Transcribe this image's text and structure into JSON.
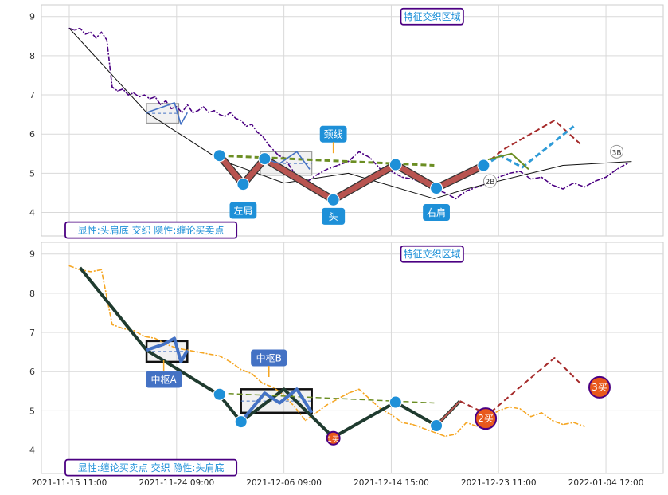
{
  "chart_data": [
    {
      "type": "line",
      "panel": "top",
      "ylim": [
        3.4,
        9.3
      ],
      "yticks": [
        "4",
        "5",
        "6",
        "7",
        "8",
        "9"
      ],
      "grid": true,
      "series": [
        {
          "kind": "price",
          "color": "#4b0082",
          "style": "dash-dot",
          "points": [
            [
              0,
              8.7
            ],
            [
              0.25,
              8.65
            ],
            [
              0.5,
              8.7
            ],
            [
              0.75,
              8.55
            ],
            [
              1,
              8.6
            ],
            [
              1.25,
              8.45
            ],
            [
              1.5,
              8.6
            ],
            [
              1.75,
              8.4
            ],
            [
              2,
              7.2
            ],
            [
              2.25,
              7.1
            ],
            [
              2.5,
              7.15
            ],
            [
              2.75,
              7.0
            ],
            [
              3,
              7.05
            ],
            [
              3.25,
              6.95
            ],
            [
              3.5,
              7.0
            ],
            [
              3.75,
              6.9
            ],
            [
              4,
              6.95
            ],
            [
              4.25,
              6.75
            ],
            [
              4.5,
              6.85
            ],
            [
              4.75,
              6.65
            ],
            [
              5,
              6.7
            ],
            [
              5.25,
              6.55
            ],
            [
              5.5,
              6.75
            ],
            [
              5.75,
              6.55
            ],
            [
              6,
              6.6
            ],
            [
              6.25,
              6.7
            ],
            [
              6.5,
              6.55
            ],
            [
              6.75,
              6.6
            ],
            [
              7,
              6.5
            ],
            [
              7.25,
              6.45
            ],
            [
              7.5,
              6.55
            ],
            [
              7.75,
              6.4
            ],
            [
              8,
              6.35
            ],
            [
              8.25,
              6.2
            ],
            [
              8.5,
              6.25
            ],
            [
              8.75,
              6.05
            ],
            [
              9,
              5.95
            ],
            [
              9.25,
              5.75
            ],
            [
              9.5,
              5.6
            ],
            [
              9.75,
              5.45
            ],
            [
              10,
              5.4
            ],
            [
              10.5,
              5.0
            ],
            [
              11,
              4.75
            ],
            [
              11.5,
              4.95
            ],
            [
              12,
              5.1
            ],
            [
              12.5,
              5.2
            ],
            [
              13,
              5.3
            ],
            [
              13.5,
              5.55
            ],
            [
              14,
              5.4
            ],
            [
              14.5,
              5.1
            ],
            [
              15,
              5.05
            ],
            [
              15.5,
              4.9
            ],
            [
              16,
              4.85
            ],
            [
              16.5,
              4.75
            ],
            [
              17,
              4.6
            ],
            [
              17.5,
              4.5
            ],
            [
              18,
              4.35
            ],
            [
              18.5,
              4.55
            ],
            [
              19,
              4.65
            ],
            [
              19.5,
              4.75
            ],
            [
              20,
              4.9
            ],
            [
              20.5,
              5.0
            ],
            [
              21,
              5.05
            ],
            [
              21.5,
              4.85
            ],
            [
              22,
              4.9
            ],
            [
              22.5,
              4.7
            ],
            [
              23,
              4.6
            ],
            [
              23.5,
              4.75
            ],
            [
              24,
              4.65
            ],
            [
              24.5,
              4.8
            ],
            [
              25,
              4.9
            ],
            [
              25.5,
              5.1
            ],
            [
              26,
              5.25
            ]
          ]
        },
        {
          "kind": "trend",
          "color": "#111111",
          "style": "solid",
          "width": 1,
          "points": [
            [
              0,
              8.7
            ],
            [
              3.6,
              6.55
            ],
            [
              7.0,
              5.35
            ],
            [
              10,
              4.75
            ],
            [
              13,
              5.0
            ],
            [
              17,
              4.35
            ],
            [
              18.5,
              4.6
            ],
            [
              23,
              5.2
            ],
            [
              26.2,
              5.3
            ]
          ]
        },
        {
          "kind": "shape",
          "color": "#b85450",
          "outline": "#333333",
          "style": "solid",
          "width": 7,
          "points": [
            [
              7.0,
              5.45
            ],
            [
              8.1,
              4.72
            ],
            [
              9.1,
              5.37
            ],
            [
              12.3,
              4.32
            ],
            [
              15.2,
              5.22
            ],
            [
              17.1,
              4.62
            ],
            [
              19.3,
              5.2
            ]
          ]
        },
        {
          "kind": "neckline",
          "color": "#6b8e23",
          "style": "dashed",
          "width": 3,
          "points": [
            [
              7.0,
              5.45
            ],
            [
              17.0,
              5.2
            ]
          ]
        },
        {
          "kind": "zhongshu_fill",
          "color": "#4472c4",
          "style": "solid",
          "points": [
            [
              3.6,
              6.55
            ],
            [
              4.4,
              6.7
            ],
            [
              4.9,
              6.8
            ],
            [
              5.2,
              6.25
            ],
            [
              5.5,
              6.55
            ]
          ]
        },
        {
          "kind": "zhongshu_fill2",
          "color": "#4472c4",
          "style": "solid",
          "points": [
            [
              9.2,
              5.35
            ],
            [
              9.8,
              5.25
            ],
            [
              10.6,
              5.55
            ],
            [
              11.2,
              5.1
            ]
          ]
        },
        {
          "kind": "projection",
          "color": "#a52a2a",
          "style": "dashed",
          "width": 2,
          "points": [
            [
              19.3,
              5.2
            ],
            [
              20.2,
              5.6
            ],
            [
              22.6,
              6.35
            ],
            [
              23.8,
              5.75
            ]
          ]
        },
        {
          "kind": "projection_fill",
          "color": "#2f9bd7",
          "style": "dashed",
          "width": 3,
          "points": [
            [
              19.3,
              5.2
            ],
            [
              20.1,
              5.45
            ],
            [
              21.1,
              5.15
            ],
            [
              23.5,
              6.2
            ]
          ]
        },
        {
          "kind": "green_wave",
          "color": "#6b8e23",
          "style": "solid",
          "width": 2,
          "points": [
            [
              19.5,
              5.35
            ],
            [
              20.6,
              5.5
            ],
            [
              21.4,
              5.1
            ]
          ]
        }
      ],
      "markers": [
        {
          "x": 7.0,
          "y": 5.45
        },
        {
          "x": 8.1,
          "y": 4.72
        },
        {
          "x": 9.1,
          "y": 5.37
        },
        {
          "x": 12.3,
          "y": 4.32
        },
        {
          "x": 15.2,
          "y": 5.22
        },
        {
          "x": 17.1,
          "y": 4.62
        },
        {
          "x": 19.3,
          "y": 5.2
        }
      ],
      "boxes": [
        {
          "x0": 3.6,
          "x1": 5.1,
          "y0": 6.28,
          "y1": 6.78,
          "color": "#999999"
        },
        {
          "x0": 8.9,
          "x1": 11.3,
          "y0": 4.95,
          "y1": 5.55,
          "color": "#999999"
        }
      ],
      "annotations": [
        {
          "text": "左肩",
          "x": 8.1,
          "y": 4.05,
          "color": "#ffffff",
          "bg": "#1e90d8"
        },
        {
          "text": "头",
          "x": 12.3,
          "y": 3.9,
          "color": "#ffffff",
          "bg": "#1e90d8"
        },
        {
          "text": "右肩",
          "x": 17.1,
          "y": 4.0,
          "color": "#ffffff",
          "bg": "#1e90d8"
        },
        {
          "text": "颈线",
          "x": 12.3,
          "y": 6.0,
          "color": "#ffffff",
          "bg": "#1e90d8"
        },
        {
          "text": "特征交织区域",
          "x": 16.9,
          "y": 9.0,
          "color": "#1e90d8",
          "bg": "#ffffff",
          "border": "#4b0082"
        },
        {
          "text": "显性:头肩底 交织 隐性:缠论买卖点",
          "x": 0,
          "y": 3.55,
          "color": "#1e90d8",
          "bg": "#ffffff",
          "border": "#4b0082"
        }
      ],
      "badges": [
        {
          "text": "2B",
          "x": 19.6,
          "y": 4.8
        },
        {
          "text": "3B",
          "x": 25.5,
          "y": 5.55
        }
      ]
    },
    {
      "type": "line",
      "panel": "bottom",
      "ylim": [
        3.4,
        9.3
      ],
      "yticks": [
        "4",
        "5",
        "6",
        "7",
        "8",
        "9"
      ],
      "grid": true,
      "series": [
        {
          "kind": "price",
          "color": "#f5a623",
          "style": "dash-dot",
          "points": [
            [
              0,
              8.7
            ],
            [
              0.5,
              8.6
            ],
            [
              1,
              8.55
            ],
            [
              1.5,
              8.6
            ],
            [
              2,
              7.2
            ],
            [
              2.5,
              7.1
            ],
            [
              3,
              7.05
            ],
            [
              3.5,
              6.9
            ],
            [
              4,
              6.85
            ],
            [
              4.5,
              6.7
            ],
            [
              5,
              6.6
            ],
            [
              5.5,
              6.55
            ],
            [
              6,
              6.5
            ],
            [
              6.5,
              6.45
            ],
            [
              7,
              6.4
            ],
            [
              7.5,
              6.25
            ],
            [
              8,
              6.05
            ],
            [
              8.5,
              5.95
            ],
            [
              9,
              5.7
            ],
            [
              9.5,
              5.6
            ],
            [
              10,
              5.4
            ],
            [
              10.5,
              5.1
            ],
            [
              11,
              4.75
            ],
            [
              11.5,
              4.95
            ],
            [
              12,
              5.15
            ],
            [
              12.5,
              5.3
            ],
            [
              13,
              5.45
            ],
            [
              13.5,
              5.55
            ],
            [
              14,
              5.3
            ],
            [
              14.5,
              5.05
            ],
            [
              15,
              4.9
            ],
            [
              15.5,
              4.7
            ],
            [
              16,
              4.65
            ],
            [
              16.5,
              4.55
            ],
            [
              17,
              4.45
            ],
            [
              17.5,
              4.35
            ],
            [
              18,
              4.4
            ],
            [
              18.5,
              4.7
            ],
            [
              19,
              4.6
            ],
            [
              19.5,
              4.85
            ],
            [
              20,
              5.0
            ],
            [
              20.5,
              5.1
            ],
            [
              21,
              5.05
            ],
            [
              21.5,
              4.85
            ],
            [
              22,
              4.95
            ],
            [
              22.5,
              4.75
            ],
            [
              23,
              4.65
            ],
            [
              23.5,
              4.7
            ],
            [
              24,
              4.6
            ]
          ]
        },
        {
          "kind": "bi",
          "color": "#1f3b2f",
          "style": "solid",
          "width": 4,
          "points": [
            [
              0.5,
              8.65
            ],
            [
              3.6,
              6.55
            ],
            [
              7.0,
              5.4
            ],
            [
              8.0,
              4.72
            ],
            [
              10.0,
              5.55
            ],
            [
              12.3,
              4.32
            ],
            [
              15.2,
              5.22
            ],
            [
              17.1,
              4.62
            ],
            [
              18.2,
              5.25
            ]
          ]
        },
        {
          "kind": "neckline",
          "color": "#6b8e23",
          "style": "dashed",
          "width": 1.5,
          "points": [
            [
              7.0,
              5.45
            ],
            [
              17.0,
              5.2
            ]
          ]
        },
        {
          "kind": "zhongshu_fill",
          "color": "#4472c4",
          "style": "solid",
          "width": 4,
          "points": [
            [
              3.6,
              6.55
            ],
            [
              4.4,
              6.7
            ],
            [
              4.9,
              6.85
            ],
            [
              5.2,
              6.25
            ],
            [
              5.5,
              6.55
            ]
          ]
        },
        {
          "kind": "zhongshu_fill2",
          "color": "#4472c4",
          "style": "solid",
          "width": 4,
          "points": [
            [
              8.0,
              4.72
            ],
            [
              9.1,
              5.45
            ],
            [
              9.8,
              5.2
            ],
            [
              10.6,
              5.55
            ],
            [
              11.3,
              4.95
            ]
          ]
        },
        {
          "kind": "projection",
          "color": "#a52a2a",
          "style": "dashed",
          "width": 2,
          "points": [
            [
              18.2,
              5.25
            ],
            [
              19.5,
              4.9
            ],
            [
              21.2,
              5.7
            ],
            [
              22.6,
              6.35
            ],
            [
              23.9,
              5.65
            ]
          ]
        },
        {
          "kind": "pink_leg",
          "color": "#b85450",
          "style": "solid",
          "width": 2,
          "points": [
            [
              17.1,
              4.62
            ],
            [
              18.2,
              5.25
            ]
          ]
        }
      ],
      "markers": [
        {
          "x": 7.0,
          "y": 5.42
        },
        {
          "x": 8.0,
          "y": 4.72
        },
        {
          "x": 15.2,
          "y": 5.22
        },
        {
          "x": 17.1,
          "y": 4.62
        }
      ],
      "boxes": [
        {
          "x0": 3.6,
          "x1": 5.5,
          "y0": 6.25,
          "y1": 6.78,
          "color": "#111111"
        },
        {
          "x0": 8.0,
          "x1": 11.3,
          "y0": 4.95,
          "y1": 5.55,
          "color": "#111111"
        }
      ],
      "annotations": [
        {
          "text": "中枢A",
          "x": 4.4,
          "y": 5.8,
          "color": "#ffffff",
          "bg": "#4472c4"
        },
        {
          "text": "中枢B",
          "x": 9.3,
          "y": 6.35,
          "color": "#ffffff",
          "bg": "#4472c4"
        },
        {
          "text": "特征交织区域",
          "x": 16.9,
          "y": 9.0,
          "color": "#1e90d8",
          "bg": "#ffffff",
          "border": "#4b0082"
        },
        {
          "text": "显性:缠论买卖点 交织 隐性:头肩底",
          "x": 0,
          "y": 3.55,
          "color": "#1e90d8",
          "bg": "#ffffff",
          "border": "#4b0082"
        }
      ],
      "badges": [
        {
          "text": "1买",
          "x": 12.3,
          "y": 4.3,
          "bg": "#e8581c",
          "size": "small"
        },
        {
          "text": "2买",
          "x": 19.4,
          "y": 4.8,
          "bg": "#e8581c",
          "size": "big"
        },
        {
          "text": "3买",
          "x": 24.7,
          "y": 5.6,
          "bg": "#e8581c",
          "size": "big"
        }
      ]
    }
  ],
  "x_tick_labels": [
    "2021-11-15 11:00",
    "2021-11-24 09:00",
    "2021-12-06 09:00",
    "2021-12-14 15:00",
    "2021-12-23 11:00",
    "2022-01-04 12:00"
  ]
}
